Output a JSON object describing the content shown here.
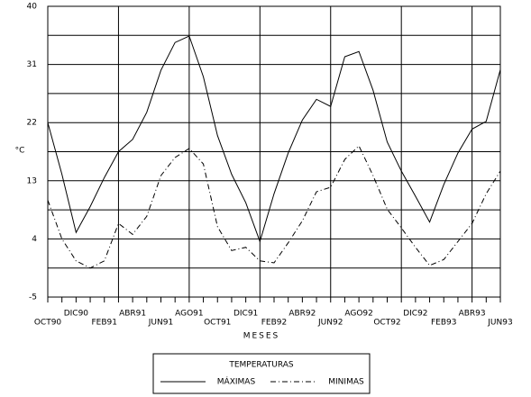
{
  "chart_data": {
    "type": "line",
    "x_label": "MESES",
    "y_label": "°C",
    "categories": [
      "OCT90",
      null,
      "DIC90",
      null,
      "FEB91",
      null,
      "ABR91",
      null,
      "JUN91",
      null,
      "AGO91",
      null,
      "OCT91",
      null,
      "DIC91",
      null,
      "FEB92",
      null,
      "ABR92",
      null,
      "JUN92",
      null,
      "AGO92",
      null,
      "OCT92",
      null,
      "DIC92",
      null,
      "FEB93",
      null,
      "ABR93",
      null,
      "JUN93"
    ],
    "series": [
      {
        "name": "MÁXIMAS",
        "color": "#000000",
        "style": "solid",
        "values": [
          22,
          14,
          5,
          9,
          13.5,
          17.5,
          19.4,
          23.6,
          30.1,
          34.4,
          35.4,
          29.1,
          20,
          14,
          9.6,
          3.6,
          11,
          17.3,
          22.4,
          25.6,
          24.5,
          32.2,
          33,
          27,
          19,
          14.5,
          10.6,
          6.6,
          12.4,
          17.3,
          21,
          22.2,
          30.2
        ]
      },
      {
        "name": "MINIMAS",
        "color": "#000000",
        "style": "dashdot",
        "values": [
          10,
          4,
          0.6,
          -0.5,
          0.6,
          6.4,
          4.7,
          7.5,
          13.8,
          16.6,
          18,
          15.6,
          5.9,
          2.2,
          2.7,
          0.6,
          0.3,
          3.4,
          6.8,
          11.3,
          12,
          16.3,
          18.4,
          13.8,
          8.6,
          5.7,
          2.7,
          -0.1,
          0.8,
          3.6,
          6.4,
          11,
          14.5
        ]
      }
    ],
    "ylim": [
      -5,
      40
    ],
    "yticks": [
      -5,
      4,
      13,
      22,
      31,
      40
    ],
    "grid": true,
    "legend_title": "TEMPERATURAS",
    "legend": "bottom"
  }
}
